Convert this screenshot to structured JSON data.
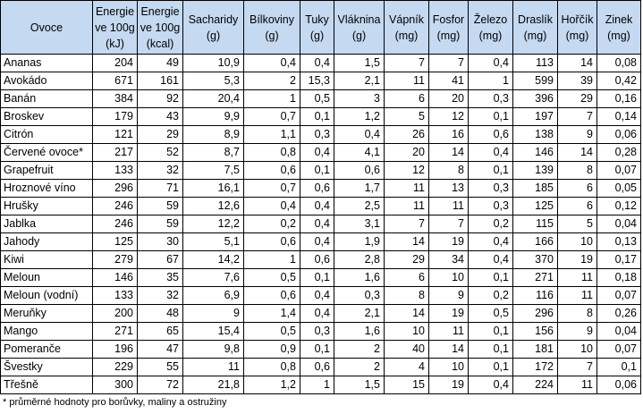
{
  "table": {
    "headers": [
      "Ovoce",
      "Energie ve 100g (kJ)",
      "Energie ve 100g (kcal)",
      "Sacharidy (g)",
      "Bílkoviny (g)",
      "Tuky (g)",
      "Vláknina (g)",
      "Vápník (mg)",
      "Fosfor (mg)",
      "Železo (mg)",
      "Draslík (mg)",
      "Hořčík (mg)",
      "Zinek (mg)"
    ],
    "rows": [
      [
        "Ananas",
        "204",
        "49",
        "10,9",
        "0,4",
        "0,4",
        "1,5",
        "7",
        "7",
        "0,4",
        "113",
        "14",
        "0,08"
      ],
      [
        "Avokádo",
        "671",
        "161",
        "5,3",
        "2",
        "15,3",
        "2,1",
        "11",
        "41",
        "1",
        "599",
        "39",
        "0,42"
      ],
      [
        "Banán",
        "384",
        "92",
        "20,4",
        "1",
        "0,5",
        "3",
        "6",
        "20",
        "0,3",
        "396",
        "29",
        "0,16"
      ],
      [
        "Broskev",
        "179",
        "43",
        "9,9",
        "0,7",
        "0,1",
        "1,2",
        "5",
        "12",
        "0,1",
        "197",
        "7",
        "0,14"
      ],
      [
        "Citrón",
        "121",
        "29",
        "8,9",
        "1,1",
        "0,3",
        "0,4",
        "26",
        "16",
        "0,6",
        "138",
        "9",
        "0,06"
      ],
      [
        "Červené ovoce*",
        "217",
        "52",
        "8,7",
        "0,8",
        "0,4",
        "4,1",
        "20",
        "14",
        "0,4",
        "146",
        "14",
        "0,28"
      ],
      [
        "Grapefruit",
        "133",
        "32",
        "7,5",
        "0,6",
        "0,1",
        "0,6",
        "12",
        "8",
        "0,1",
        "139",
        "8",
        "0,07"
      ],
      [
        "Hroznové víno",
        "296",
        "71",
        "16,1",
        "0,7",
        "0,6",
        "1,7",
        "11",
        "13",
        "0,3",
        "185",
        "6",
        "0,05"
      ],
      [
        "Hrušky",
        "246",
        "59",
        "12,6",
        "0,4",
        "0,4",
        "2,5",
        "11",
        "11",
        "0,3",
        "125",
        "6",
        "0,12"
      ],
      [
        "Jablka",
        "246",
        "59",
        "12,2",
        "0,2",
        "0,4",
        "3,1",
        "7",
        "7",
        "0,2",
        "115",
        "5",
        "0,04"
      ],
      [
        "Jahody",
        "125",
        "30",
        "5,1",
        "0,6",
        "0,4",
        "1,9",
        "14",
        "19",
        "0,4",
        "166",
        "10",
        "0,13"
      ],
      [
        "Kiwi",
        "279",
        "67",
        "14,2",
        "1",
        "0,6",
        "2,8",
        "29",
        "34",
        "0,4",
        "370",
        "19",
        "0,17"
      ],
      [
        "Meloun",
        "146",
        "35",
        "7,6",
        "0,5",
        "0,1",
        "1,6",
        "6",
        "10",
        "0,1",
        "271",
        "11",
        "0,18"
      ],
      [
        "Meloun (vodní)",
        "133",
        "32",
        "6,9",
        "0,6",
        "0,4",
        "0,3",
        "8",
        "9",
        "0,2",
        "116",
        "11",
        "0,07"
      ],
      [
        "Meruňky",
        "200",
        "48",
        "9",
        "1,4",
        "0,4",
        "2,1",
        "14",
        "19",
        "0,5",
        "296",
        "8",
        "0,26"
      ],
      [
        "Mango",
        "271",
        "65",
        "15,4",
        "0,5",
        "0,3",
        "1,6",
        "10",
        "11",
        "0,1",
        "156",
        "9",
        "0,04"
      ],
      [
        "Pomeranče",
        "196",
        "47",
        "9,8",
        "0,9",
        "0,1",
        "2",
        "40",
        "14",
        "0,1",
        "181",
        "10",
        "0,07"
      ],
      [
        "Švestky",
        "229",
        "55",
        "11",
        "0,8",
        "0,6",
        "2",
        "4",
        "10",
        "0,1",
        "172",
        "7",
        "0,1"
      ],
      [
        "Třešně",
        "300",
        "72",
        "21,8",
        "1,2",
        "1",
        "1,5",
        "15",
        "19",
        "0,4",
        "224",
        "11",
        "0,06"
      ]
    ]
  },
  "footnote": "* průměrné hodnoty pro borůvky, maliny a ostružiny"
}
